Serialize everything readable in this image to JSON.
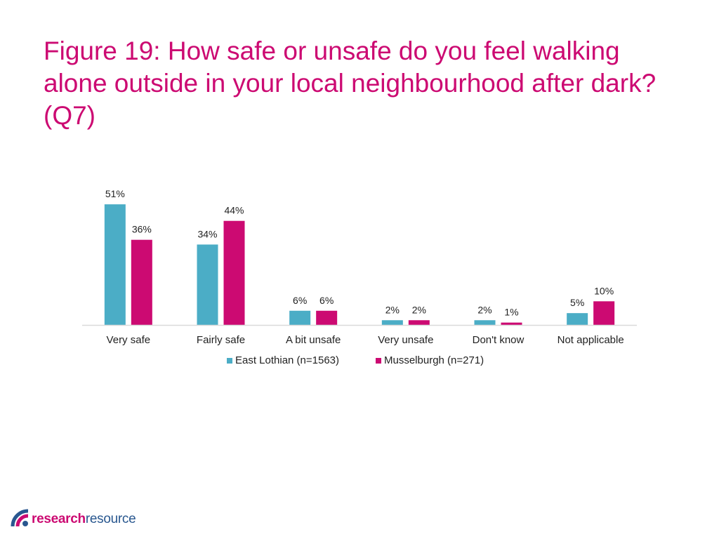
{
  "page": {
    "title": "Figure 19: How safe or unsafe do you feel walking alone outside in your local neighbourhood after dark? (Q7)"
  },
  "logo": {
    "part1": "research",
    "part2": "resource"
  },
  "chart_data": {
    "type": "bar",
    "title": "",
    "xlabel": "",
    "ylabel": "",
    "ylim": [
      0,
      55
    ],
    "grid": false,
    "legend_position": "bottom",
    "categories": [
      "Very safe",
      "Fairly safe",
      "A bit unsafe",
      "Very unsafe",
      "Don't know",
      "Not applicable"
    ],
    "series": [
      {
        "name": "East Lothian (n=1563)",
        "color": "#4badc6",
        "values": [
          51,
          34,
          6,
          2,
          2,
          5
        ],
        "labels": [
          "51%",
          "34%",
          "6%",
          "2%",
          "2%",
          "5%"
        ]
      },
      {
        "name": "Musselburgh (n=271)",
        "color": "#cc0a72",
        "values": [
          36,
          44,
          6,
          2,
          1,
          10
        ],
        "labels": [
          "36%",
          "44%",
          "6%",
          "2%",
          "1%",
          "10%"
        ]
      }
    ],
    "axis_color": "#d9d9d9"
  }
}
